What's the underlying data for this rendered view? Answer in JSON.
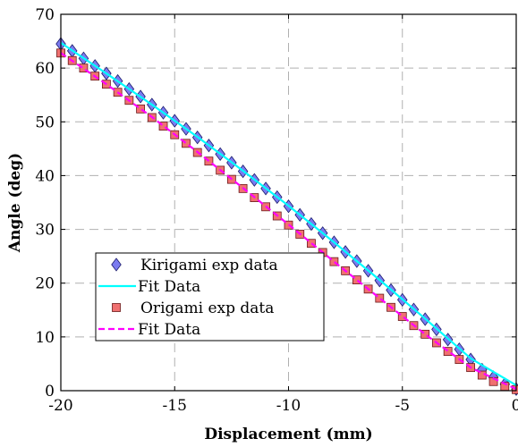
{
  "chart_data": {
    "type": "scatter",
    "title": "",
    "xlabel": "Displacement (mm)",
    "ylabel": "Angle (deg)",
    "xlim": [
      -20,
      0
    ],
    "ylim": [
      0,
      70
    ],
    "xticks": [
      -20,
      -15,
      -10,
      -5,
      0
    ],
    "yticks": [
      0,
      10,
      20,
      30,
      40,
      50,
      60,
      70
    ],
    "grid": true,
    "legend_position": "bottom-left",
    "series": [
      {
        "name": "Kirigami exp data",
        "kind": "markers",
        "marker": "diamond",
        "color": "#7b7bf0",
        "x": [
          -20,
          -19.5,
          -19,
          -18.5,
          -18,
          -17.5,
          -17,
          -16.5,
          -16,
          -15.5,
          -15,
          -14.5,
          -14,
          -13.5,
          -13,
          -12.5,
          -12,
          -11.5,
          -11,
          -10.5,
          -10,
          -9.5,
          -9,
          -8.5,
          -8,
          -7.5,
          -7,
          -6.5,
          -6,
          -5.5,
          -5,
          -4.5,
          -4,
          -3.5,
          -3,
          -2.5,
          -2,
          -1.5,
          -1,
          -0.5,
          0
        ],
        "y": [
          64.5,
          63.2,
          61.8,
          60.4,
          59.0,
          57.6,
          56.1,
          54.7,
          53.2,
          51.7,
          50.2,
          48.7,
          47.1,
          45.6,
          44.0,
          42.4,
          40.8,
          39.2,
          37.6,
          36.0,
          34.3,
          32.7,
          31.0,
          29.3,
          27.6,
          25.8,
          24.1,
          22.3,
          20.5,
          18.7,
          16.9,
          15.1,
          13.3,
          11.4,
          9.5,
          7.7,
          5.8,
          3.9,
          2.5,
          1.2,
          0.3
        ]
      },
      {
        "name": "Fit Data",
        "kind": "line",
        "color": "#00ffff",
        "dash": "solid",
        "x": [
          -20,
          -18,
          -16,
          -14,
          -12,
          -10,
          -8,
          -6,
          -4,
          -2,
          0
        ],
        "y": [
          64.7,
          59.0,
          53.2,
          47.2,
          40.9,
          34.4,
          27.6,
          20.6,
          13.4,
          6.0,
          1.0
        ]
      },
      {
        "name": "Origami exp data",
        "kind": "markers",
        "marker": "square",
        "color": "#f07070",
        "x": [
          -20,
          -19.5,
          -19,
          -18.5,
          -18,
          -17.5,
          -17,
          -16.5,
          -16,
          -15.5,
          -15,
          -14.5,
          -14,
          -13.5,
          -13,
          -12.5,
          -12,
          -11.5,
          -11,
          -10.5,
          -10,
          -9.5,
          -9,
          -8.5,
          -8,
          -7.5,
          -7,
          -6.5,
          -6,
          -5.5,
          -5,
          -4.5,
          -4,
          -3.5,
          -3,
          -2.5,
          -2,
          -1.5,
          -1,
          -0.5,
          0
        ],
        "y": [
          62.8,
          61.4,
          60.0,
          58.5,
          57.0,
          55.5,
          54.0,
          52.4,
          50.8,
          49.2,
          47.6,
          46.0,
          44.3,
          42.7,
          41.0,
          39.3,
          37.6,
          35.9,
          34.2,
          32.5,
          30.8,
          29.1,
          27.4,
          25.7,
          24.0,
          22.3,
          20.6,
          18.9,
          17.2,
          15.5,
          13.8,
          12.1,
          10.5,
          8.9,
          7.3,
          5.8,
          4.3,
          2.9,
          1.7,
          0.8,
          0.2
        ]
      },
      {
        "name": "Fit Data",
        "kind": "line",
        "color": "#ff00ff",
        "dash": "dashed",
        "x": [
          -20,
          -18,
          -16,
          -14,
          -12,
          -10,
          -8,
          -6,
          -4,
          -2,
          0
        ],
        "y": [
          62.8,
          57.0,
          50.9,
          44.4,
          37.7,
          30.9,
          24.0,
          17.2,
          10.5,
          4.3,
          0.3
        ]
      }
    ]
  }
}
